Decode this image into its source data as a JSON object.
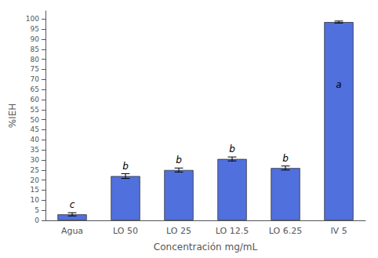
{
  "chart_data": {
    "type": "bar",
    "categories": [
      "Agua",
      "LO 50",
      "LO 25",
      "LO 12.5",
      "LO 6.25",
      "IV 5"
    ],
    "values": [
      3.0,
      22.0,
      25.0,
      30.5,
      26.0,
      98.5
    ],
    "errors": [
      0.8,
      1.2,
      1.0,
      1.0,
      1.0,
      0.5
    ],
    "annotations": [
      {
        "text": "c",
        "x": "Agua",
        "y": 5.5
      },
      {
        "text": "b",
        "x": "LO 50",
        "y": 24.5
      },
      {
        "text": "b",
        "x": "LO 25",
        "y": 27.5
      },
      {
        "text": "b",
        "x": "LO 12.5",
        "y": 33.0
      },
      {
        "text": "b",
        "x": "LO 6.25",
        "y": 28.5
      },
      {
        "text": "a",
        "x": "IV 5",
        "y": 65.0
      }
    ],
    "xlabel": "Concentración mg/mL",
    "ylabel": "%IEH",
    "ylim": [
      0,
      104
    ],
    "yticks": [
      0,
      5,
      10,
      15,
      20,
      25,
      30,
      35,
      40,
      45,
      50,
      55,
      60,
      65,
      70,
      75,
      80,
      85,
      90,
      95,
      100
    ],
    "grid": false
  }
}
